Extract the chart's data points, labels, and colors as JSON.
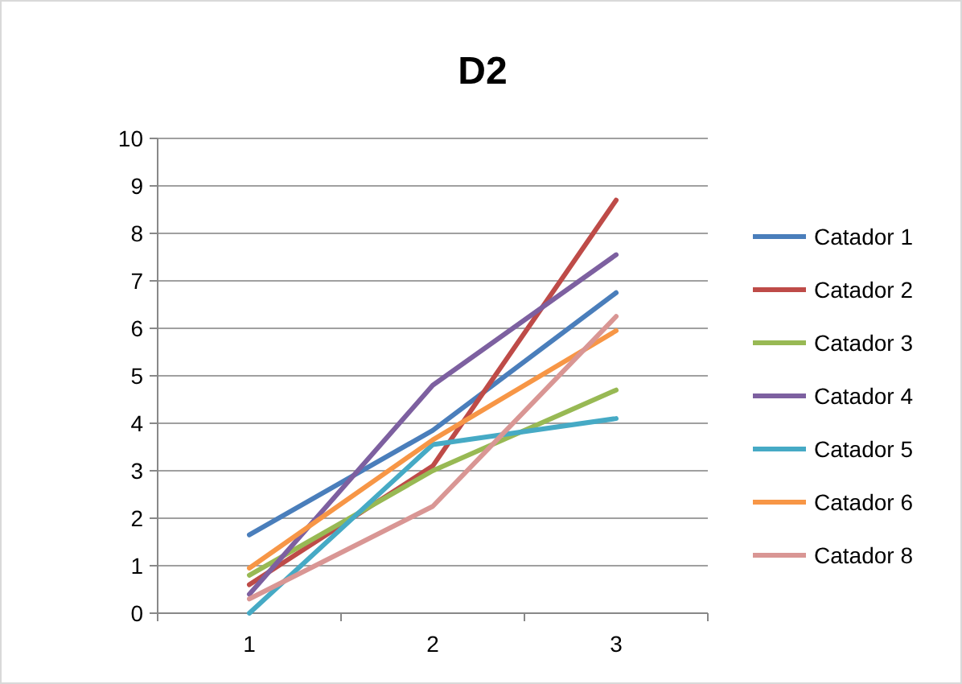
{
  "chart_data": {
    "type": "line",
    "title": "D2",
    "categories": [
      "1",
      "2",
      "3"
    ],
    "ylim": [
      0,
      10
    ],
    "yticks": [
      0,
      1,
      2,
      3,
      4,
      5,
      6,
      7,
      8,
      9,
      10
    ],
    "grid": "y",
    "legend": "right",
    "marker": "none",
    "series": [
      {
        "name": "Catador 1",
        "color": "#4a7ebb",
        "values": [
          1.65,
          3.85,
          6.75
        ]
      },
      {
        "name": "Catador 2",
        "color": "#be4b48",
        "values": [
          0.6,
          3.1,
          8.7
        ]
      },
      {
        "name": "Catador 3",
        "color": "#98b954",
        "values": [
          0.8,
          3.0,
          4.7
        ]
      },
      {
        "name": "Catador 4",
        "color": "#7d60a0",
        "values": [
          0.4,
          4.8,
          7.55
        ]
      },
      {
        "name": "Catador 5",
        "color": "#46aac5",
        "values": [
          0,
          3.55,
          4.1
        ]
      },
      {
        "name": "Catador 6",
        "color": "#f79646",
        "values": [
          0.95,
          3.65,
          5.95
        ]
      },
      {
        "name": "Catador 8",
        "color": "#d99694",
        "values": [
          0.3,
          2.25,
          6.25
        ]
      }
    ]
  }
}
